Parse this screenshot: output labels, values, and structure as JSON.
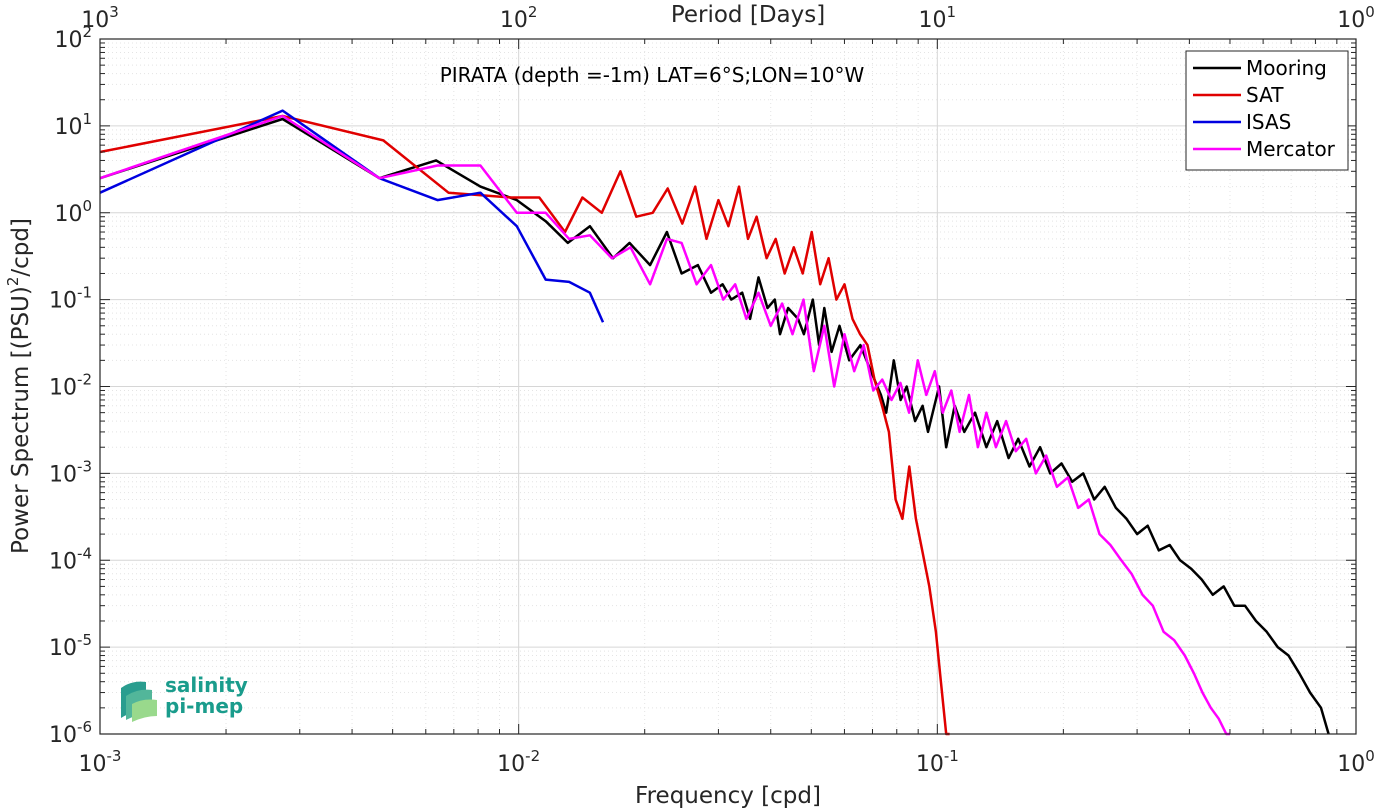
{
  "chart_data": {
    "type": "line",
    "title": "PIRATA (depth =-1m) LAT=6°S;LON=10°W",
    "xlabel": "Frequency [cpd]",
    "ylabel": "Power Spectrum [(PSU)²/cpd]",
    "ylabel_parts": [
      "Power Spectrum [(PSU)",
      "2",
      "/cpd]"
    ],
    "top_xlabel": "Period [Days]",
    "xscale": "log",
    "yscale": "log",
    "xlim": [
      0.001,
      1
    ],
    "ylim": [
      1e-06,
      100
    ],
    "grid": true,
    "legend_position": "top-right",
    "x_ticks": [
      {
        "value": 0.001,
        "base": "10",
        "exp": "-3"
      },
      {
        "value": 0.01,
        "base": "10",
        "exp": "-2"
      },
      {
        "value": 0.1,
        "base": "10",
        "exp": "-1"
      },
      {
        "value": 1,
        "base": "10",
        "exp": "0"
      }
    ],
    "top_ticks": [
      {
        "value": 0.001,
        "base": "10",
        "exp": "3"
      },
      {
        "value": 0.01,
        "base": "10",
        "exp": "2"
      },
      {
        "value": 0.1,
        "base": "10",
        "exp": "1"
      },
      {
        "value": 1,
        "base": "10",
        "exp": "0"
      }
    ],
    "y_ticks": [
      {
        "value": 100,
        "base": "10",
        "exp": "2"
      },
      {
        "value": 10,
        "base": "10",
        "exp": "1"
      },
      {
        "value": 1,
        "base": "10",
        "exp": "0"
      },
      {
        "value": 0.1,
        "base": "10",
        "exp": "-1"
      },
      {
        "value": 0.01,
        "base": "10",
        "exp": "-2"
      },
      {
        "value": 0.001,
        "base": "10",
        "exp": "-3"
      },
      {
        "value": 0.0001,
        "base": "10",
        "exp": "-4"
      },
      {
        "value": 1e-05,
        "base": "10",
        "exp": "-5"
      },
      {
        "value": 1e-06,
        "base": "10",
        "exp": "-6"
      }
    ],
    "series": [
      {
        "name": "Mooring",
        "color": "#000000",
        "x": [
          0.001,
          0.00273,
          0.00465,
          0.00635,
          0.0081,
          0.0099,
          0.0116,
          0.0131,
          0.0148,
          0.0168,
          0.0184,
          0.0206,
          0.0226,
          0.0245,
          0.0268,
          0.0288,
          0.0307,
          0.0322,
          0.0342,
          0.0357,
          0.0374,
          0.0393,
          0.0409,
          0.0421,
          0.044,
          0.0465,
          0.048,
          0.0504,
          0.0522,
          0.0537,
          0.0559,
          0.0584,
          0.0616,
          0.0655,
          0.0694,
          0.0733,
          0.0755,
          0.0787,
          0.0817,
          0.0845,
          0.0885,
          0.0922,
          0.095,
          0.101,
          0.105,
          0.11,
          0.116,
          0.123,
          0.131,
          0.139,
          0.148,
          0.156,
          0.166,
          0.176,
          0.186,
          0.198,
          0.21,
          0.223,
          0.237,
          0.251,
          0.267,
          0.283,
          0.3,
          0.318,
          0.338,
          0.359,
          0.38,
          0.404,
          0.428,
          0.455,
          0.483,
          0.512,
          0.543,
          0.577,
          0.612,
          0.65,
          0.69,
          0.732,
          0.777,
          0.825,
          0.86
        ],
        "y": [
          2.5,
          12.0,
          2.5,
          4.0,
          2.0,
          1.4,
          0.8,
          0.45,
          0.7,
          0.3,
          0.45,
          0.25,
          0.6,
          0.2,
          0.25,
          0.12,
          0.15,
          0.1,
          0.12,
          0.06,
          0.18,
          0.08,
          0.1,
          0.04,
          0.08,
          0.06,
          0.04,
          0.1,
          0.03,
          0.08,
          0.025,
          0.05,
          0.02,
          0.03,
          0.015,
          0.008,
          0.005,
          0.02,
          0.007,
          0.01,
          0.004,
          0.006,
          0.003,
          0.01,
          0.002,
          0.006,
          0.003,
          0.005,
          0.002,
          0.004,
          0.0015,
          0.0025,
          0.0012,
          0.002,
          0.001,
          0.0013,
          0.0008,
          0.001,
          0.0005,
          0.0007,
          0.0004,
          0.0003,
          0.0002,
          0.00025,
          0.00013,
          0.00015,
          0.0001,
          8e-05,
          6e-05,
          4e-05,
          5e-05,
          3e-05,
          3e-05,
          2e-05,
          1.5e-05,
          1e-05,
          8e-06,
          5e-06,
          3e-06,
          2e-06,
          1e-06
        ]
      },
      {
        "name": "SAT",
        "color": "#e00000",
        "x": [
          0.001,
          0.00273,
          0.00475,
          0.0068,
          0.0096,
          0.0112,
          0.0129,
          0.0142,
          0.0158,
          0.0175,
          0.0191,
          0.0209,
          0.0227,
          0.0246,
          0.0264,
          0.0281,
          0.03,
          0.0317,
          0.0336,
          0.0353,
          0.037,
          0.0391,
          0.0411,
          0.0432,
          0.0454,
          0.0477,
          0.0501,
          0.0525,
          0.055,
          0.0574,
          0.06,
          0.0627,
          0.0654,
          0.0681,
          0.0708,
          0.0738,
          0.0766,
          0.0795,
          0.0825,
          0.0857,
          0.0889,
          0.0923,
          0.0957,
          0.0992,
          0.102,
          0.105,
          0.107
        ],
        "y": [
          5.0,
          13.0,
          6.8,
          1.7,
          1.5,
          1.5,
          0.6,
          1.5,
          1.0,
          3.0,
          0.9,
          1.0,
          1.9,
          0.75,
          2.0,
          0.5,
          1.4,
          0.7,
          2.0,
          0.5,
          0.9,
          0.3,
          0.5,
          0.2,
          0.4,
          0.2,
          0.6,
          0.15,
          0.3,
          0.1,
          0.15,
          0.06,
          0.04,
          0.03,
          0.012,
          0.006,
          0.003,
          0.0005,
          0.0003,
          0.0012,
          0.0003,
          0.00012,
          5e-05,
          1.5e-05,
          4e-06,
          1e-06,
          1e-06
        ]
      },
      {
        "name": "ISAS",
        "color": "#0000e0",
        "x": [
          0.001,
          0.00273,
          0.00465,
          0.0064,
          0.0081,
          0.0099,
          0.0116,
          0.0132,
          0.0148,
          0.0159
        ],
        "y": [
          1.7,
          15.0,
          2.5,
          1.4,
          1.7,
          0.7,
          0.17,
          0.16,
          0.12,
          0.055
        ]
      },
      {
        "name": "Mercator",
        "color": "#ff00ff",
        "x": [
          0.001,
          0.00273,
          0.00465,
          0.0064,
          0.0081,
          0.0099,
          0.0116,
          0.0132,
          0.0148,
          0.0167,
          0.0185,
          0.0206,
          0.0226,
          0.0245,
          0.0266,
          0.0288,
          0.0308,
          0.0329,
          0.035,
          0.0374,
          0.04,
          0.0426,
          0.0451,
          0.0479,
          0.0507,
          0.0537,
          0.0567,
          0.06,
          0.0633,
          0.0667,
          0.0703,
          0.0739,
          0.0777,
          0.0816,
          0.0856,
          0.0898,
          0.0941,
          0.0986,
          0.103,
          0.108,
          0.113,
          0.119,
          0.125,
          0.131,
          0.138,
          0.146,
          0.154,
          0.163,
          0.172,
          0.182,
          0.193,
          0.205,
          0.217,
          0.23,
          0.244,
          0.259,
          0.275,
          0.291,
          0.309,
          0.327,
          0.347,
          0.368,
          0.39,
          0.41,
          0.43,
          0.45,
          0.47,
          0.49,
          0.5
        ],
        "y": [
          2.5,
          13.0,
          2.5,
          3.5,
          3.5,
          1.0,
          1.0,
          0.5,
          0.55,
          0.3,
          0.4,
          0.15,
          0.5,
          0.45,
          0.15,
          0.25,
          0.1,
          0.15,
          0.06,
          0.12,
          0.05,
          0.09,
          0.04,
          0.1,
          0.015,
          0.05,
          0.01,
          0.04,
          0.015,
          0.03,
          0.009,
          0.012,
          0.007,
          0.011,
          0.005,
          0.02,
          0.008,
          0.015,
          0.005,
          0.009,
          0.003,
          0.008,
          0.002,
          0.005,
          0.002,
          0.004,
          0.0018,
          0.0025,
          0.001,
          0.0016,
          0.0007,
          0.0009,
          0.0004,
          0.0005,
          0.0002,
          0.00015,
          0.0001,
          7e-05,
          4e-05,
          3e-05,
          1.5e-05,
          1.2e-05,
          8e-06,
          5e-06,
          3e-06,
          2e-06,
          1.5e-06,
          1e-06,
          1e-06
        ]
      }
    ]
  },
  "logo": {
    "line1": "salinity",
    "line2": "pi-mep"
  }
}
